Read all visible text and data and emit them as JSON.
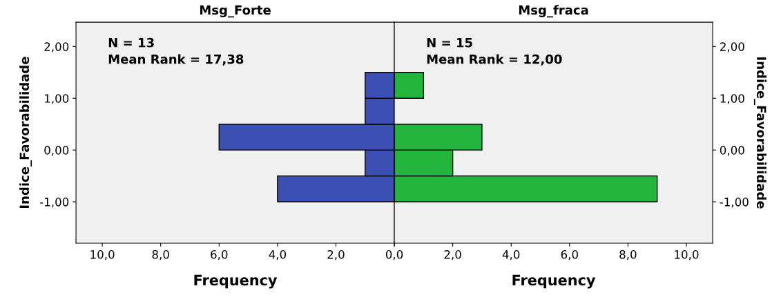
{
  "chart_data": [
    {
      "type": "histogram",
      "orientation": "horizontal",
      "title": "Msg_Forte",
      "xlabel": "Frequency",
      "ylabel": "Indice_Favorabilidade",
      "annotations": [
        "N = 13",
        "Mean Rank = 17,38"
      ],
      "bins": [
        -1.0,
        -0.5,
        0.0,
        0.5,
        1.0,
        1.5
      ],
      "values": [
        4,
        1,
        6,
        1,
        1
      ],
      "color": "#3c50b4",
      "xlim": [
        10.9,
        0
      ],
      "xticks": [
        {
          "value": 10,
          "label": "10,0"
        },
        {
          "value": 8,
          "label": "8,0"
        },
        {
          "value": 6,
          "label": "6,0"
        },
        {
          "value": 4,
          "label": "4,0"
        },
        {
          "value": 2,
          "label": "2,0"
        },
        {
          "value": 0,
          "label": null
        }
      ],
      "ylim": [
        -1.8,
        2.47
      ],
      "yticks": [
        {
          "value": -1,
          "label": "-1,00"
        },
        {
          "value": 0,
          "label": "0,00"
        },
        {
          "value": 1,
          "label": "1,00"
        },
        {
          "value": 2,
          "label": "2,00"
        }
      ],
      "grid": false,
      "legend": false
    },
    {
      "type": "histogram",
      "orientation": "horizontal",
      "title": "Msg_fraca",
      "xlabel": "Frequency",
      "ylabel": "Indice_Favorabilidade",
      "annotations": [
        "N = 15",
        "Mean Rank = 12,00"
      ],
      "bins": [
        -1.0,
        -0.5,
        0.0,
        0.5,
        1.0,
        1.5
      ],
      "values": [
        9,
        2,
        3,
        0,
        1
      ],
      "color": "#22b43c",
      "xlim": [
        0,
        10.9
      ],
      "xticks": [
        {
          "value": 0,
          "label": "0,0"
        },
        {
          "value": 2,
          "label": "2,0"
        },
        {
          "value": 4,
          "label": "4,0"
        },
        {
          "value": 6,
          "label": "6,0"
        },
        {
          "value": 8,
          "label": "8,0"
        },
        {
          "value": 10,
          "label": "10,0"
        }
      ],
      "ylim": [
        -1.8,
        2.47
      ],
      "yticks": [
        {
          "value": -1,
          "label": "-1,00"
        },
        {
          "value": 0,
          "label": "0,00"
        },
        {
          "value": 1,
          "label": "1,00"
        },
        {
          "value": 2,
          "label": "2,00"
        }
      ],
      "grid": false,
      "legend": false
    }
  ]
}
